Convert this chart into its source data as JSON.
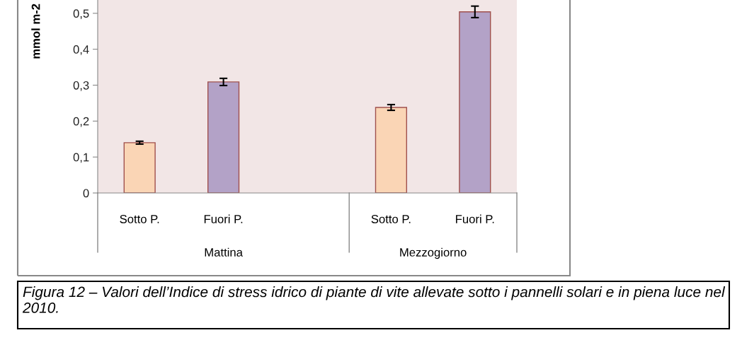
{
  "chart_data": {
    "type": "bar",
    "ylabel": "mmol m-2",
    "categories": [
      "Sotto P.",
      "Fuori P.",
      null,
      "Sotto P.",
      "Fuori P."
    ],
    "series": [
      {
        "colors": [
          "#fad5b5",
          "#b3a2c7",
          "#fad5b5",
          "#fad5b5",
          "#b3a2c7"
        ],
        "values": [
          0.14,
          0.309,
          null,
          0.238,
          0.504
        ],
        "errors": [
          0.004,
          0.01,
          null,
          0.008,
          0.016
        ]
      }
    ],
    "ylim": [
      0,
      0.537
    ],
    "yticks": [
      0,
      {
        "value": 0.1,
        "label": "0,1"
      },
      {
        "value": 0.2,
        "label": "0,2"
      },
      {
        "value": 0.3,
        "label": "0,3"
      },
      {
        "value": 0.4,
        "label": "0,4"
      },
      {
        "value": 0.5,
        "label": "0,5"
      }
    ],
    "grid": false,
    "legend": false,
    "annotations": [
      "Mattina",
      "Mezzogiorno",
      "Figura 12 – Valori dell’Indice di stress idrico di piante di vite allevate sotto i pannelli solari e in piena luce nel 2010."
    ]
  }
}
